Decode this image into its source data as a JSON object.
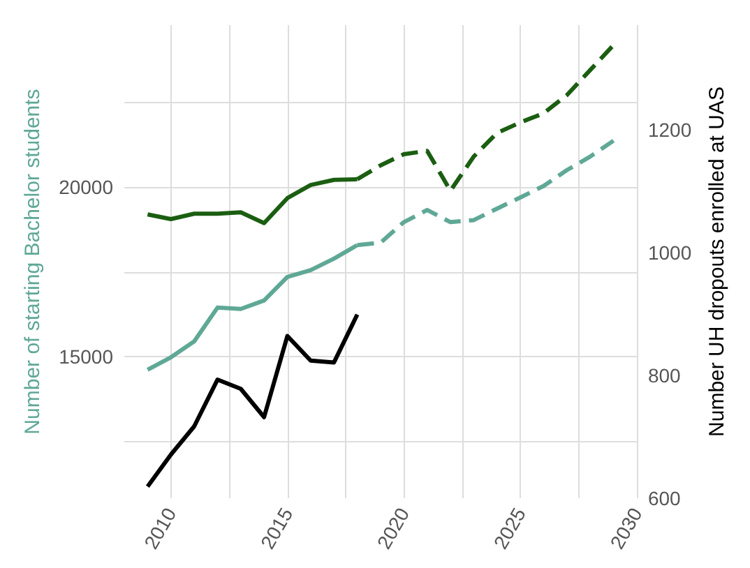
{
  "chart_data": {
    "type": "line",
    "ylabel": "Number of starting Bachelor students",
    "y2label": "Number UH dropouts enrolled at UAS",
    "xlim": [
      2008,
      2030
    ],
    "xticks": [
      2010,
      {
        "value": 2012.5,
        "label": null
      },
      2015,
      {
        "value": 2017.5,
        "label": null
      },
      2020,
      {
        "value": 2022.5,
        "label": null
      },
      2025,
      {
        "value": 2027.5,
        "label": null
      },
      2030
    ],
    "ylim": [
      10800,
      24800
    ],
    "yticks": [
      {
        "value": 12500,
        "label": null
      },
      15000,
      {
        "value": 17500,
        "label": null
      },
      20000,
      {
        "value": 22500,
        "label": null
      }
    ],
    "y2lim": [
      600,
      1370
    ],
    "y2ticks": [
      600,
      800,
      1000,
      1200
    ],
    "grid": true,
    "marker": "none",
    "series": [
      {
        "color": "#5fa896",
        "line_style": "solid",
        "x": [
          2009,
          2010,
          2011,
          2012,
          2013,
          2014,
          2015,
          2016,
          2017,
          2018
        ],
        "values": [
          14600,
          14970,
          15440,
          16440,
          16400,
          16650,
          17350,
          17550,
          17890,
          18290
        ]
      },
      {
        "color": "#5fa896",
        "line_style": "dashed",
        "x": [
          2018,
          2019,
          2020,
          2021,
          2022,
          2023,
          2024,
          2025,
          2026,
          2027,
          2028,
          2029
        ],
        "values": [
          18290,
          18360,
          18970,
          19330,
          18970,
          19030,
          19370,
          19700,
          20040,
          20510,
          20910,
          21380
        ]
      },
      {
        "color": "#1b5e12",
        "line_style": "solid",
        "x": [
          2009,
          2010,
          2011,
          2012,
          2013,
          2014,
          2015,
          2016,
          2017,
          2018
        ],
        "values": [
          19200,
          19060,
          19220,
          19220,
          19260,
          18940,
          19680,
          20070,
          20220,
          20240
        ]
      },
      {
        "color": "#1b5e12",
        "line_style": "dashed",
        "x": [
          2018,
          2019,
          2020,
          2021,
          2022,
          2023,
          2024,
          2025,
          2026,
          2027,
          2028,
          2029
        ],
        "values": [
          20240,
          20650,
          20980,
          21080,
          19900,
          20910,
          21610,
          21920,
          22190,
          22730,
          23470,
          24210
        ]
      },
      {
        "color": "#000000",
        "line_style": "solid",
        "axis": "y2",
        "x": [
          2009,
          2010,
          2011,
          2012,
          2013,
          2014,
          2015,
          2016,
          2017,
          2018
        ],
        "values": [
          619,
          671,
          717,
          793,
          778,
          732,
          864,
          824,
          821,
          899
        ]
      }
    ]
  }
}
